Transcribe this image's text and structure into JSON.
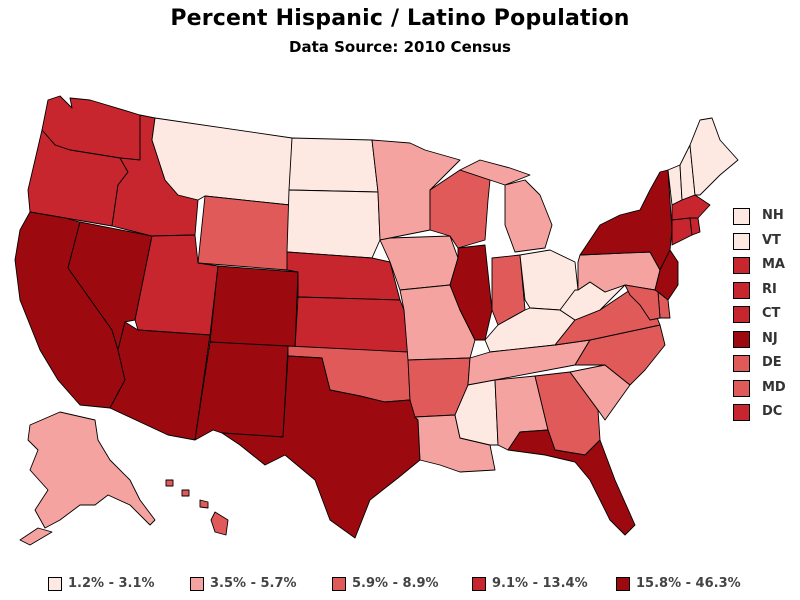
{
  "title": "Percent Hispanic / Latino Population",
  "subtitle": "Data Source: 2010 Census",
  "colors": {
    "c1": "#fde8e2",
    "c2": "#f4a3a0",
    "c3": "#e05a5a",
    "c4": "#c8262e",
    "c5": "#9c0a10"
  },
  "legend": [
    {
      "label": "1.2% - 3.1%",
      "color_key": "c1"
    },
    {
      "label": "3.5% - 5.7%",
      "color_key": "c2"
    },
    {
      "label": "5.9% - 8.9%",
      "color_key": "c3"
    },
    {
      "label": "9.1% - 13.4%",
      "color_key": "c4"
    },
    {
      "label": "15.8% - 46.3%",
      "color_key": "c5"
    }
  ],
  "small_states": [
    {
      "label": "NH",
      "color_key": "c1"
    },
    {
      "label": "VT",
      "color_key": "c1"
    },
    {
      "label": "MA",
      "color_key": "c4"
    },
    {
      "label": "RI",
      "color_key": "c4"
    },
    {
      "label": "CT",
      "color_key": "c4"
    },
    {
      "label": "NJ",
      "color_key": "c5"
    },
    {
      "label": "DE",
      "color_key": "c3"
    },
    {
      "label": "MD",
      "color_key": "c3"
    },
    {
      "label": "DC",
      "color_key": "c4"
    }
  ],
  "state_classes": {
    "WA": "c4",
    "OR": "c4",
    "CA": "c5",
    "NV": "c5",
    "ID": "c4",
    "MT": "c1",
    "WY": "c3",
    "UT": "c4",
    "AZ": "c5",
    "CO": "c5",
    "NM": "c5",
    "ND": "c1",
    "SD": "c1",
    "NE": "c4",
    "KS": "c4",
    "OK": "c3",
    "TX": "c5",
    "MN": "c2",
    "IA": "c2",
    "MO": "c2",
    "AR": "c3",
    "LA": "c2",
    "WI": "c3",
    "IL": "c5",
    "MI": "c2",
    "IN": "c3",
    "OH": "c1",
    "KY": "c1",
    "TN": "c2",
    "MS": "c1",
    "AL": "c2",
    "GA": "c3",
    "FL": "c5",
    "SC": "c2",
    "NC": "c3",
    "VA": "c3",
    "WV": "c1",
    "PA": "c2",
    "NY": "c5",
    "ME": "c1",
    "NHm": "c1",
    "VTm": "c1",
    "MAm": "c4",
    "CTm": "c4",
    "RIm": "c4",
    "NJm": "c5",
    "DEm": "c3",
    "MDm": "c3",
    "AK": "c2",
    "HI": "c3"
  }
}
